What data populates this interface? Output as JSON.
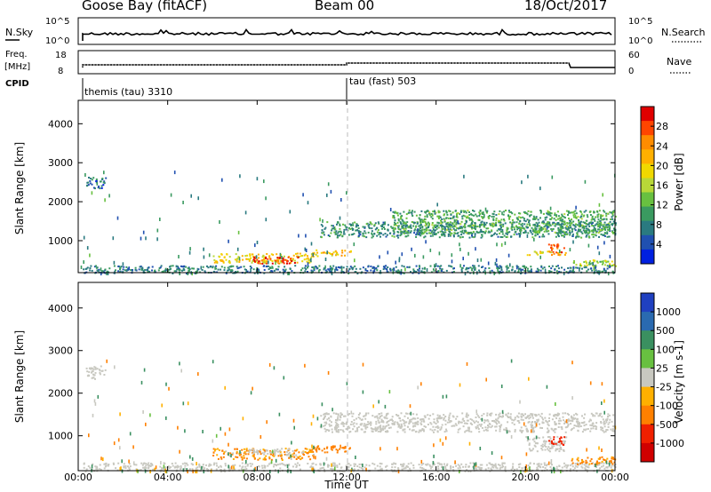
{
  "header": {
    "station": "Goose Bay (fitACF)",
    "beam": "Beam 00",
    "date": "18/Oct/2017"
  },
  "top_panels": {
    "nsky": {
      "label": "N.Sky",
      "right_label": "N.Search",
      "left_ticks": [
        "10^5",
        "10^0"
      ],
      "right_ticks": [
        "10^5",
        "10^0"
      ]
    },
    "freq": {
      "label_line1": "Freq.",
      "label_line2": "[MHz]",
      "left_ticks": [
        "18",
        "8"
      ],
      "right_label": "Nave",
      "right_ticks": [
        "60",
        "0"
      ]
    },
    "cpid": {
      "label": "CPID",
      "modes": [
        {
          "name": "themis (tau) 3310",
          "start_hour": 0.3
        },
        {
          "name": "tau (fast) 503",
          "start_hour": 12.0
        }
      ]
    }
  },
  "power_colorbar": {
    "label": "Power [dB]",
    "ticks": [
      "28",
      "24",
      "20",
      "16",
      "12",
      "8",
      "4"
    ],
    "colors": [
      "#e00000",
      "#ff4500",
      "#ff8c00",
      "#ffb000",
      "#f0d800",
      "#b8d838",
      "#68c040",
      "#3a9a60",
      "#2a7a80",
      "#2050b0",
      "#0020e0"
    ]
  },
  "velocity_colorbar": {
    "label": "Velocity [m s-1]",
    "ticks": [
      "1000",
      "500",
      "100",
      "25",
      "-25",
      "-100",
      "-500",
      "-1000"
    ],
    "colors": [
      "#2040c0",
      "#2a6ab0",
      "#3a9060",
      "#68c040",
      "#c8c8c0",
      "#ffb000",
      "#ff8000",
      "#f02000",
      "#d00000"
    ]
  },
  "chart_data": [
    {
      "type": "heatmap",
      "title": "",
      "quantity": "Power",
      "unit": "dB",
      "xlabel": "Time UT",
      "ylabel": "Slant Range [km]",
      "xlim_hours": [
        0,
        24
      ],
      "ylim_km": [
        180,
        4600
      ],
      "x_tick_labels": [
        "00:00",
        "04:00",
        "08:00",
        "12:00",
        "16:00",
        "20:00",
        "00:00"
      ],
      "y_tick_labels": [
        "1000",
        "2000",
        "3000",
        "4000"
      ],
      "echo_regions": [
        {
          "t": [
            0.2,
            24
          ],
          "range_km": [
            180,
            380
          ],
          "value_db": 6
        },
        {
          "t": [
            0.3,
            1.2
          ],
          "range_km": [
            2350,
            2650
          ],
          "value_db": 5
        },
        {
          "t": [
            6.0,
            10.5
          ],
          "range_km": [
            450,
            700
          ],
          "value_db": 18
        },
        {
          "t": [
            7.8,
            9.8
          ],
          "range_km": [
            430,
            620
          ],
          "value_db": 27
        },
        {
          "t": [
            10.5,
            12.2
          ],
          "range_km": [
            620,
            780
          ],
          "value_db": 20
        },
        {
          "t": [
            10.8,
            24
          ],
          "range_km": [
            1100,
            1500
          ],
          "value_db": 8
        },
        {
          "t": [
            14.0,
            24
          ],
          "range_km": [
            1200,
            1800
          ],
          "value_db": 10
        },
        {
          "t": [
            20.0,
            21.8
          ],
          "range_km": [
            650,
            750
          ],
          "value_db": 18
        },
        {
          "t": [
            21.0,
            21.7
          ],
          "range_km": [
            650,
            950
          ],
          "value_db": 26
        },
        {
          "t": [
            22.0,
            24
          ],
          "range_km": [
            350,
            520
          ],
          "value_db": 14
        }
      ]
    },
    {
      "type": "heatmap",
      "title": "",
      "quantity": "Velocity",
      "unit": "m s-1",
      "xlabel": "Time UT",
      "ylabel": "Slant Range [km]",
      "xlim_hours": [
        0,
        24
      ],
      "ylim_km": [
        180,
        4600
      ],
      "x_tick_labels": [
        "00:00",
        "04:00",
        "08:00",
        "12:00",
        "16:00",
        "20:00",
        "00:00"
      ],
      "y_tick_labels": [
        "1000",
        "2000",
        "3000",
        "4000"
      ],
      "echo_regions": [
        {
          "t": [
            0.2,
            24
          ],
          "range_km": [
            180,
            380
          ],
          "value_ms": 0
        },
        {
          "t": [
            0.3,
            1.2
          ],
          "range_km": [
            2350,
            2650
          ],
          "value_ms": 0
        },
        {
          "t": [
            6.0,
            10.5
          ],
          "range_km": [
            450,
            720
          ],
          "value_ms": -100
        },
        {
          "t": [
            7.5,
            9.5
          ],
          "range_km": [
            560,
            720
          ],
          "value_ms": 0
        },
        {
          "t": [
            10.5,
            12.2
          ],
          "range_km": [
            620,
            780
          ],
          "value_ms": -200
        },
        {
          "t": [
            10.8,
            24
          ],
          "range_km": [
            1100,
            1550
          ],
          "value_ms": 0
        },
        {
          "t": [
            20.0,
            21.8
          ],
          "range_km": [
            650,
            1000
          ],
          "value_ms": 0
        },
        {
          "t": [
            21.0,
            21.7
          ],
          "range_km": [
            800,
            1000
          ],
          "value_ms": -600
        },
        {
          "t": [
            22.0,
            24
          ],
          "range_km": [
            350,
            520
          ],
          "value_ms": -150
        }
      ]
    }
  ]
}
